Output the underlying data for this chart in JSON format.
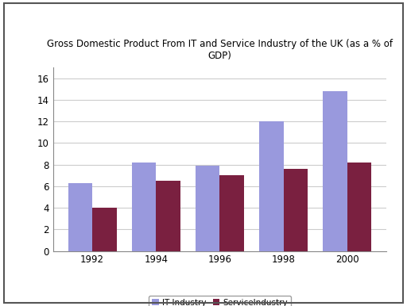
{
  "title": "Gross Domestic Product From IT and Service Industry of the UK (as a % of\nGDP)",
  "years": [
    "1992",
    "1994",
    "1996",
    "1998",
    "2000"
  ],
  "it_industry": [
    6.3,
    8.2,
    7.9,
    12.0,
    14.8
  ],
  "service_industry": [
    4.0,
    6.5,
    7.0,
    7.6,
    8.2
  ],
  "it_color": "#9999dd",
  "service_color": "#7a2040",
  "bar_width": 0.38,
  "ylim": [
    0,
    17
  ],
  "yticks": [
    0,
    2,
    4,
    6,
    8,
    10,
    12,
    14,
    16
  ],
  "legend_labels": [
    "IT Industry",
    "ServiceIndustry"
  ],
  "background_color": "#ffffff",
  "axes_bg_color": "#ffffff",
  "title_fontsize": 8.5,
  "tick_fontsize": 8.5,
  "legend_fontsize": 7.5
}
